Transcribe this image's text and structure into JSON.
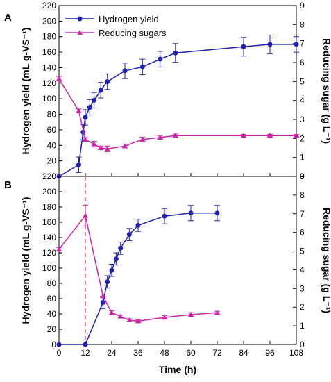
{
  "chart_data": [
    {
      "type": "line",
      "panel_label": "A",
      "ylabel": "Hydrogen yield (mL g-VS⁻¹)",
      "y2label": "Reducing sugar (g L⁻¹)",
      "xlabel": "",
      "xlim": [
        0,
        108
      ],
      "ylim": [
        0,
        220
      ],
      "y2lim": [
        0,
        9
      ],
      "y_ticks": [
        0,
        20,
        40,
        60,
        80,
        100,
        120,
        140,
        160,
        180,
        200,
        220
      ],
      "y2_ticks": [
        0,
        1,
        2,
        3,
        4,
        5,
        6,
        7,
        8,
        9
      ],
      "legend_position": "top-left",
      "series": [
        {
          "name": "Hydrogen yield",
          "axis": "left",
          "color": "#1f1fb4",
          "marker": "circle",
          "x": [
            0,
            9,
            11,
            12,
            14,
            16,
            19,
            22,
            30,
            38,
            46,
            53,
            84,
            96,
            108
          ],
          "y": [
            0,
            15,
            57,
            76,
            89,
            98,
            111,
            122,
            136,
            141,
            151,
            159,
            167,
            170,
            170
          ],
          "err": [
            0,
            10,
            10,
            10,
            10,
            10,
            10,
            10,
            10,
            10,
            10,
            12,
            12,
            12,
            10
          ]
        },
        {
          "name": "Reducing sugars",
          "axis": "right",
          "color": "#cc22aa",
          "marker": "triangle",
          "x": [
            0,
            9,
            12,
            16,
            19,
            22,
            30,
            38,
            46,
            53,
            84,
            96,
            108
          ],
          "y": [
            5.15,
            3.45,
            1.95,
            1.7,
            1.5,
            1.45,
            1.6,
            1.95,
            2.05,
            2.15,
            2.15,
            2.15,
            2.15
          ],
          "err": [
            0.12,
            0.1,
            0.1,
            0.15,
            0.1,
            0.15,
            0.1,
            0.12,
            0.08,
            0.08,
            0.06,
            0.06,
            0.06
          ]
        }
      ]
    },
    {
      "type": "line",
      "panel_label": "B",
      "ylabel": "Hydrogen yield (mL g-VS⁻¹)",
      "y2label": "Reducing sugar (g L⁻¹)",
      "xlabel": "Time (h)",
      "xlim": [
        0,
        108
      ],
      "x_ticks": [
        0,
        12,
        24,
        36,
        48,
        60,
        72,
        84,
        96,
        108
      ],
      "ylim": [
        0,
        220
      ],
      "y2lim": [
        0,
        9
      ],
      "y_ticks": [
        0,
        20,
        40,
        60,
        80,
        100,
        120,
        140,
        160,
        180,
        200,
        220
      ],
      "y2_ticks": [
        0,
        1,
        2,
        3,
        4,
        5,
        6,
        7,
        8,
        9
      ],
      "vline_x": 12,
      "series": [
        {
          "name": "Hydrogen yield",
          "axis": "left",
          "color": "#1f1fb4",
          "marker": "circle",
          "x": [
            0,
            12,
            20,
            22,
            24,
            26,
            28,
            32,
            36,
            48,
            60,
            72
          ],
          "y": [
            0,
            0,
            55,
            82,
            97,
            112,
            126,
            144,
            156,
            168,
            172,
            172
          ],
          "err": [
            0,
            0,
            8,
            8,
            8,
            8,
            8,
            8,
            8,
            10,
            10,
            10
          ]
        },
        {
          "name": "Reducing sugars",
          "axis": "right",
          "color": "#cc22aa",
          "marker": "triangle",
          "x": [
            0,
            12,
            20,
            24,
            28,
            32,
            36,
            48,
            60,
            72
          ],
          "y": [
            5.1,
            6.9,
            2.6,
            1.7,
            1.5,
            1.3,
            1.25,
            1.45,
            1.6,
            1.7
          ],
          "err": [
            0.1,
            0.55,
            0.1,
            0.1,
            0.08,
            0.08,
            0.06,
            0.1,
            0.1,
            0.08
          ]
        }
      ]
    }
  ]
}
